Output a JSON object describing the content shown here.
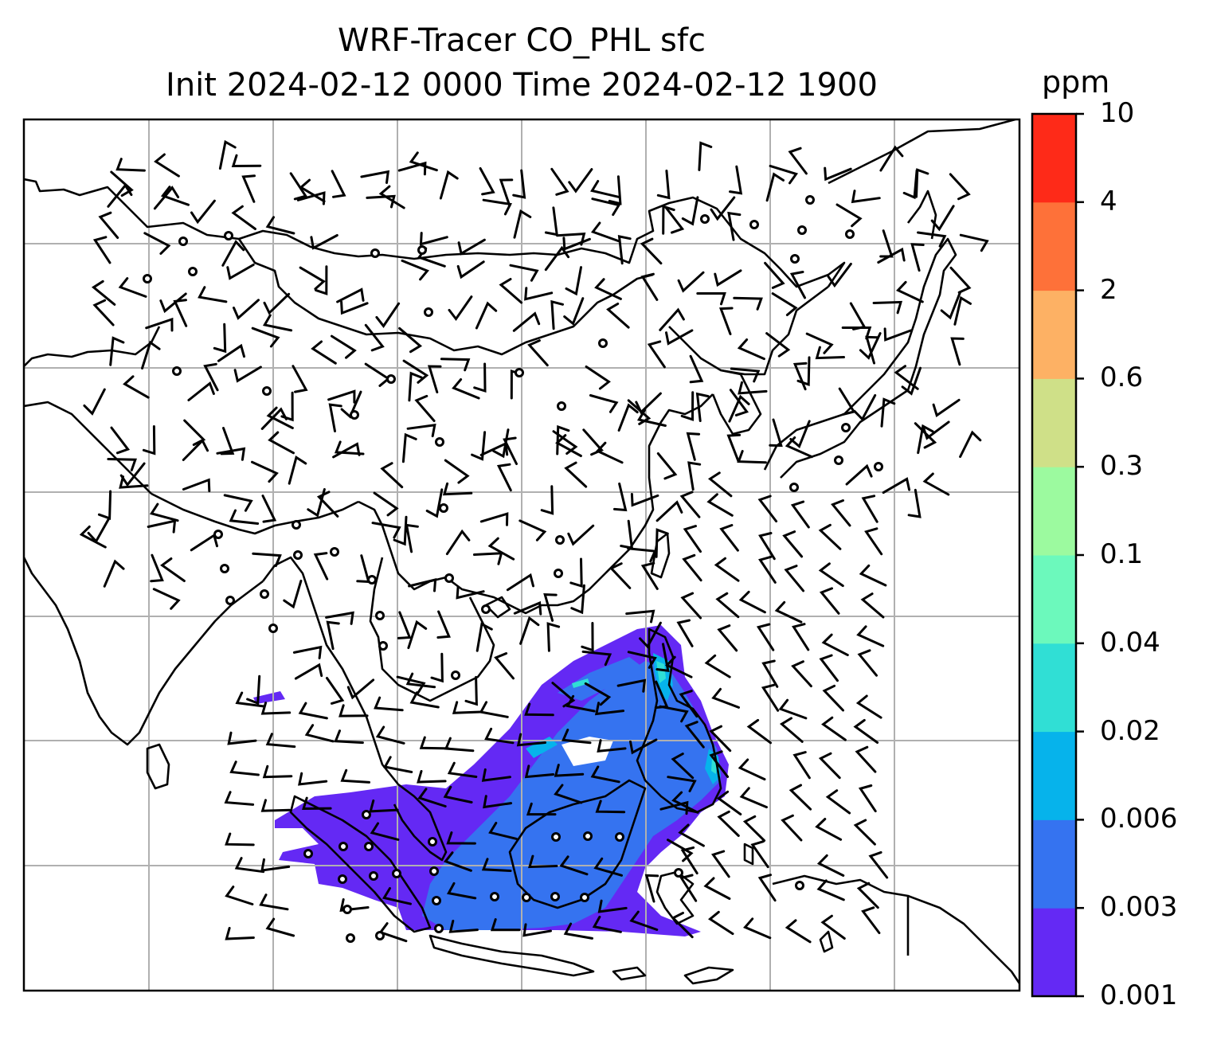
{
  "title": {
    "line1": "WRF-Tracer CO_PHL sfc",
    "line2": "Init 2024-02-12 0000 Time 2024-02-12 1900"
  },
  "colorbar": {
    "unit": "ppm",
    "levels": [
      "0.001",
      "0.003",
      "0.006",
      "0.02",
      "0.04",
      "0.1",
      "0.3",
      "0.6",
      "2",
      "4",
      "10"
    ],
    "colors": [
      "#6429f4",
      "#3573f0",
      "#06b3eb",
      "#30dfd5",
      "#6cf9bc",
      "#9cfa9f",
      "#cfe088",
      "#fdb164",
      "#fe7139",
      "#fe2a18"
    ]
  },
  "map": {
    "region": "East Asia / Southeast Asia",
    "features": [
      "coastlines",
      "country borders",
      "gridlines",
      "wind barbs",
      "calm circles",
      "CO tracer plume"
    ],
    "colors": {
      "plume_low": "#6429f4",
      "plume_mid": "#3573f0",
      "plume_cyan": "#30dfd5",
      "grid": "#b0b0b0"
    }
  }
}
